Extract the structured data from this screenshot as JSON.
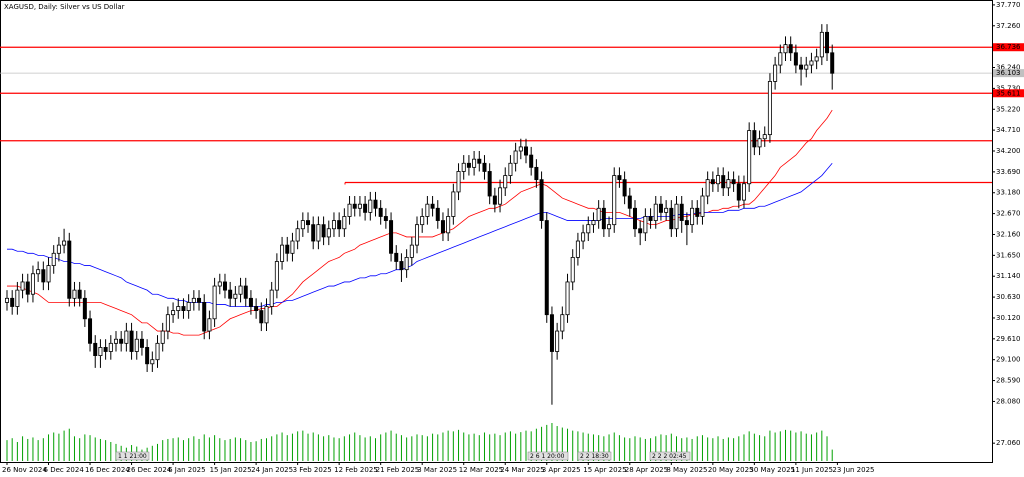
{
  "chart_data": {
    "type": "candlestick",
    "title": "XAGUSD, Daily:  Silver vs US Dollar",
    "date_labels": [
      "26 Nov 2024",
      "6 Dec 2024",
      "16 Dec 2024",
      "26 Dec 2024",
      "6 Jan 2025",
      "15 Jan 2025",
      "24 Jan 2025",
      "3 Feb 2025",
      "12 Feb 2025",
      "21 Feb 2025",
      "3 Mar 2025",
      "12 Mar 2025",
      "24 Mar 2025",
      "3 Apr 2025",
      "15 Apr 2025",
      "28 Apr 2025",
      "8 May 2025",
      "20 May 2025",
      "30 May 2025",
      "11 Jun 2025",
      "23 Jun 2025"
    ],
    "ylim": [
      26.6,
      37.89
    ],
    "yticks": [
      {
        "value": 37.77,
        "label": "37.770"
      },
      {
        "value": 37.26,
        "label": "37.260"
      },
      {
        "value": 36.24,
        "label": "36.240"
      },
      {
        "value": 35.73,
        "label": "35.730"
      },
      {
        "value": 35.22,
        "label": "35.220"
      },
      {
        "value": 34.71,
        "label": "34.710"
      },
      {
        "value": 34.2,
        "label": "34.200"
      },
      {
        "value": 33.69,
        "label": "33.690"
      },
      {
        "value": 33.18,
        "label": "33.180"
      },
      {
        "value": 32.67,
        "label": "32.670"
      },
      {
        "value": 32.16,
        "label": "32.160"
      },
      {
        "value": 31.65,
        "label": "31.650"
      },
      {
        "value": 31.14,
        "label": "31.140"
      },
      {
        "value": 30.63,
        "label": "30.630"
      },
      {
        "value": 30.12,
        "label": "30.120"
      },
      {
        "value": 29.61,
        "label": "29.610"
      },
      {
        "value": 29.1,
        "label": "29.100"
      },
      {
        "value": 28.59,
        "label": "28.590"
      },
      {
        "value": 28.08,
        "label": "28.080"
      },
      {
        "value": 27.06,
        "label": "27.060"
      }
    ],
    "up_color": "#ffffff",
    "down_color": "#000000",
    "open": [
      30.5,
      30.6,
      30.4,
      30.8,
      31.0,
      30.7,
      31.2,
      31.3,
      31.0,
      31.4,
      31.7,
      31.9,
      32.0,
      30.6,
      30.8,
      30.6,
      30.1,
      29.5,
      29.2,
      29.4,
      29.3,
      29.5,
      29.6,
      29.5,
      29.8,
      29.3,
      29.6,
      29.4,
      29.0,
      29.1,
      29.5,
      29.8,
      30.2,
      30.3,
      30.4,
      30.3,
      30.5,
      30.6,
      30.5,
      29.8,
      30.1,
      30.9,
      31.0,
      30.8,
      30.6,
      30.7,
      30.9,
      30.6,
      30.4,
      30.3,
      30.0,
      30.4,
      30.8,
      31.5,
      31.9,
      31.7,
      32.0,
      32.3,
      32.5,
      32.4,
      32.0,
      32.4,
      32.1,
      32.3,
      32.5,
      32.3,
      32.6,
      32.9,
      32.8,
      32.9,
      32.7,
      33.0,
      32.8,
      32.6,
      32.5,
      31.7,
      31.5,
      31.3,
      31.6,
      31.9,
      32.4,
      32.6,
      32.9,
      32.8,
      32.5,
      32.2,
      32.6,
      33.2,
      33.7,
      33.9,
      33.8,
      34.0,
      33.9,
      33.7,
      33.1,
      32.9,
      33.3,
      33.6,
      33.9,
      34.2,
      34.3,
      34.1,
      33.8,
      33.5,
      32.5,
      30.2,
      29.3,
      29.8,
      30.2,
      31.0,
      31.6,
      32.0,
      32.2,
      32.4,
      32.5,
      32.8,
      32.3,
      32.4,
      33.6,
      33.5,
      33.1,
      32.8,
      32.3,
      32.2,
      32.6,
      32.5,
      32.9,
      32.7,
      32.8,
      32.3,
      32.9,
      32.5,
      32.4,
      32.8,
      32.6,
      33.1,
      33.5,
      33.4,
      33.6,
      33.3,
      33.5,
      33.4,
      33.0,
      33.4,
      34.7,
      34.3,
      34.5,
      34.6,
      35.9,
      36.3,
      36.6,
      36.8,
      36.6,
      36.3,
      36.2,
      36.3,
      36.4,
      36.5,
      37.1,
      36.6
    ],
    "high": [
      30.8,
      30.8,
      31.0,
      31.2,
      31.2,
      31.4,
      31.5,
      31.5,
      31.6,
      31.9,
      32.1,
      32.3,
      32.2,
      31.0,
      31.0,
      30.8,
      30.3,
      29.7,
      29.6,
      29.6,
      29.7,
      29.8,
      29.8,
      30.0,
      30.0,
      29.8,
      29.8,
      29.6,
      29.3,
      29.7,
      30.0,
      30.4,
      30.5,
      30.6,
      30.6,
      30.7,
      30.8,
      30.8,
      30.7,
      30.3,
      31.1,
      31.2,
      31.2,
      31.0,
      30.9,
      31.1,
      31.1,
      30.8,
      30.6,
      30.5,
      30.6,
      31.0,
      31.7,
      32.1,
      32.1,
      32.2,
      32.5,
      32.7,
      32.7,
      32.6,
      32.6,
      32.6,
      32.5,
      32.7,
      32.7,
      32.8,
      33.1,
      33.1,
      33.1,
      33.1,
      33.2,
      33.2,
      33.0,
      32.8,
      32.7,
      31.9,
      31.7,
      31.8,
      32.1,
      32.6,
      32.8,
      33.1,
      33.1,
      33.0,
      32.7,
      32.8,
      33.4,
      33.9,
      34.1,
      34.1,
      34.2,
      34.2,
      34.1,
      33.9,
      33.3,
      33.5,
      33.8,
      34.1,
      34.4,
      34.5,
      34.5,
      34.3,
      34.0,
      33.7,
      32.7,
      30.4,
      30.0,
      30.4,
      31.2,
      31.8,
      32.2,
      32.4,
      32.6,
      32.7,
      33.0,
      33.0,
      32.6,
      33.8,
      33.8,
      33.7,
      33.3,
      33.0,
      32.5,
      32.8,
      32.8,
      33.1,
      33.1,
      33.0,
      33.0,
      33.1,
      33.1,
      32.7,
      33.0,
      33.0,
      33.3,
      33.7,
      33.7,
      33.8,
      33.8,
      33.7,
      33.7,
      33.6,
      33.6,
      34.9,
      34.9,
      34.7,
      34.8,
      36.1,
      36.5,
      36.8,
      37.0,
      37.0,
      36.8,
      36.5,
      36.5,
      36.6,
      36.7,
      37.3,
      37.3,
      36.8
    ],
    "low": [
      30.3,
      30.2,
      30.2,
      30.6,
      30.5,
      30.5,
      31.0,
      30.8,
      30.8,
      31.2,
      31.5,
      31.7,
      30.4,
      30.4,
      30.4,
      29.9,
      29.3,
      28.9,
      28.9,
      29.1,
      29.1,
      29.3,
      29.3,
      29.3,
      29.1,
      29.1,
      29.2,
      28.8,
      28.8,
      28.9,
      29.3,
      29.6,
      30.0,
      30.1,
      30.1,
      30.1,
      30.3,
      30.3,
      29.6,
      29.6,
      29.9,
      30.7,
      30.6,
      30.4,
      30.4,
      30.5,
      30.4,
      30.2,
      30.1,
      29.8,
      29.8,
      30.2,
      30.6,
      31.3,
      31.5,
      31.5,
      31.8,
      32.1,
      32.2,
      31.8,
      31.8,
      31.9,
      31.9,
      32.1,
      32.1,
      32.1,
      32.4,
      32.6,
      32.6,
      32.5,
      32.5,
      32.6,
      32.4,
      32.3,
      31.5,
      31.3,
      31.0,
      31.1,
      31.4,
      31.7,
      32.2,
      32.4,
      32.6,
      32.3,
      32.0,
      32.0,
      32.4,
      33.0,
      33.5,
      33.6,
      33.6,
      33.7,
      33.5,
      32.9,
      32.7,
      32.7,
      33.1,
      33.4,
      33.7,
      34.0,
      33.9,
      33.6,
      33.3,
      32.3,
      30.0,
      28.0,
      29.1,
      29.6,
      30.0,
      30.8,
      31.4,
      31.8,
      32.0,
      32.2,
      32.3,
      32.1,
      32.1,
      32.2,
      33.3,
      32.9,
      32.6,
      32.1,
      31.9,
      32.0,
      32.3,
      32.3,
      32.5,
      32.5,
      32.1,
      32.1,
      32.2,
      31.9,
      32.2,
      32.4,
      32.4,
      32.9,
      33.2,
      33.2,
      33.1,
      33.1,
      33.2,
      32.8,
      32.8,
      33.2,
      34.1,
      34.1,
      34.3,
      34.4,
      35.7,
      36.1,
      36.4,
      36.4,
      36.1,
      35.8,
      36.0,
      36.1,
      36.2,
      36.3,
      36.4,
      35.7
    ],
    "close": [
      30.6,
      30.4,
      30.8,
      31.0,
      30.7,
      31.2,
      31.3,
      31.0,
      31.4,
      31.7,
      31.9,
      32.0,
      30.6,
      30.8,
      30.6,
      30.1,
      29.5,
      29.2,
      29.4,
      29.3,
      29.5,
      29.6,
      29.5,
      29.8,
      29.3,
      29.6,
      29.4,
      29.0,
      29.1,
      29.5,
      29.8,
      30.2,
      30.3,
      30.4,
      30.3,
      30.5,
      30.6,
      30.5,
      29.8,
      30.1,
      30.9,
      31.0,
      30.8,
      30.6,
      30.7,
      30.9,
      30.6,
      30.4,
      30.3,
      30.0,
      30.4,
      30.8,
      31.5,
      31.9,
      31.7,
      32.0,
      32.3,
      32.5,
      32.4,
      32.0,
      32.4,
      32.1,
      32.3,
      32.5,
      32.3,
      32.6,
      32.9,
      32.8,
      32.9,
      32.7,
      33.0,
      32.8,
      32.6,
      32.5,
      31.7,
      31.5,
      31.3,
      31.6,
      31.9,
      32.4,
      32.6,
      32.9,
      32.8,
      32.5,
      32.2,
      32.6,
      33.2,
      33.7,
      33.9,
      33.8,
      34.0,
      33.9,
      33.7,
      33.1,
      32.9,
      33.3,
      33.6,
      33.9,
      34.2,
      34.3,
      34.1,
      33.8,
      33.5,
      32.5,
      30.2,
      29.3,
      29.8,
      30.2,
      31.0,
      31.6,
      32.0,
      32.2,
      32.4,
      32.5,
      32.8,
      32.3,
      32.4,
      33.6,
      33.5,
      33.1,
      32.8,
      32.3,
      32.2,
      32.6,
      32.5,
      32.9,
      32.7,
      32.8,
      32.3,
      32.9,
      32.5,
      32.4,
      32.8,
      32.6,
      33.1,
      33.5,
      33.4,
      33.6,
      33.3,
      33.5,
      33.4,
      33.0,
      33.4,
      34.7,
      34.3,
      34.5,
      34.6,
      35.9,
      36.3,
      36.6,
      36.8,
      36.6,
      36.3,
      36.2,
      36.3,
      36.4,
      36.5,
      37.1,
      36.6,
      36.1
    ],
    "series": [
      {
        "color": "#ff0000",
        "values": [
          30.9,
          30.9,
          30.9,
          30.85,
          30.8,
          30.75,
          30.7,
          30.6,
          30.5,
          30.5,
          30.5,
          30.5,
          30.5,
          30.5,
          30.5,
          30.5,
          30.5,
          30.5,
          30.5,
          30.45,
          30.4,
          30.35,
          30.3,
          30.25,
          30.2,
          30.1,
          30.0,
          30.0,
          29.9,
          29.8,
          29.8,
          29.8,
          29.75,
          29.75,
          29.7,
          29.7,
          29.7,
          29.7,
          29.75,
          29.8,
          29.85,
          29.9,
          30.0,
          30.1,
          30.15,
          30.2,
          30.25,
          30.3,
          30.3,
          30.35,
          30.35,
          30.4,
          30.4,
          30.5,
          30.6,
          30.7,
          30.85,
          31.0,
          31.1,
          31.2,
          31.3,
          31.4,
          31.5,
          31.55,
          31.6,
          31.7,
          31.75,
          31.8,
          31.9,
          31.95,
          32.0,
          32.05,
          32.1,
          32.15,
          32.2,
          32.2,
          32.15,
          32.1,
          32.1,
          32.1,
          32.1,
          32.1,
          32.1,
          32.15,
          32.2,
          32.25,
          32.3,
          32.4,
          32.5,
          32.6,
          32.65,
          32.7,
          32.75,
          32.8,
          32.8,
          32.85,
          32.9,
          33.0,
          33.1,
          33.2,
          33.25,
          33.3,
          33.35,
          33.4,
          33.35,
          33.25,
          33.15,
          33.05,
          33.0,
          32.95,
          32.9,
          32.85,
          32.8,
          32.8,
          32.75,
          32.7,
          32.7,
          32.7,
          32.7,
          32.65,
          32.6,
          32.55,
          32.5,
          32.45,
          32.4,
          32.4,
          32.45,
          32.5,
          32.5,
          32.55,
          32.6,
          32.6,
          32.65,
          32.65,
          32.7,
          32.7,
          32.75,
          32.75,
          32.8,
          32.8,
          32.85,
          32.85,
          32.9,
          32.9,
          33.0,
          33.15,
          33.3,
          33.45,
          33.6,
          33.8,
          33.9,
          34.0,
          34.1,
          34.25,
          34.4,
          34.5,
          34.7,
          34.85,
          35.0,
          35.2
        ]
      },
      {
        "color": "#0000ff",
        "values": [
          31.8,
          31.8,
          31.75,
          31.75,
          31.7,
          31.7,
          31.65,
          31.65,
          31.6,
          31.6,
          31.55,
          31.5,
          31.5,
          31.45,
          31.45,
          31.4,
          31.4,
          31.35,
          31.3,
          31.25,
          31.2,
          31.15,
          31.1,
          31.0,
          30.95,
          30.9,
          30.85,
          30.8,
          30.7,
          30.7,
          30.65,
          30.6,
          30.6,
          30.55,
          30.55,
          30.5,
          30.5,
          30.5,
          30.5,
          30.5,
          30.45,
          30.45,
          30.45,
          30.4,
          30.4,
          30.4,
          30.4,
          30.4,
          30.4,
          30.4,
          30.45,
          30.45,
          30.5,
          30.5,
          30.55,
          30.55,
          30.6,
          30.65,
          30.7,
          30.75,
          30.8,
          30.85,
          30.9,
          30.9,
          30.95,
          31.0,
          31.0,
          31.05,
          31.1,
          31.1,
          31.15,
          31.15,
          31.2,
          31.2,
          31.25,
          31.3,
          31.3,
          31.35,
          31.4,
          31.5,
          31.55,
          31.6,
          31.65,
          31.7,
          31.75,
          31.8,
          31.85,
          31.9,
          31.95,
          32.0,
          32.05,
          32.1,
          32.15,
          32.2,
          32.25,
          32.3,
          32.35,
          32.4,
          32.45,
          32.5,
          32.55,
          32.6,
          32.65,
          32.7,
          32.7,
          32.65,
          32.6,
          32.55,
          32.5,
          32.5,
          32.5,
          32.5,
          32.5,
          32.5,
          32.5,
          32.55,
          32.55,
          32.55,
          32.55,
          32.55,
          32.55,
          32.55,
          32.55,
          32.6,
          32.6,
          32.6,
          32.6,
          32.6,
          32.6,
          32.65,
          32.65,
          32.65,
          32.65,
          32.7,
          32.7,
          32.7,
          32.7,
          32.7,
          32.7,
          32.75,
          32.75,
          32.75,
          32.8,
          32.8,
          32.8,
          32.85,
          32.85,
          32.9,
          32.95,
          33.0,
          33.05,
          33.1,
          33.15,
          33.2,
          33.3,
          33.4,
          33.5,
          33.6,
          33.75,
          33.9
        ]
      }
    ],
    "volume_color": "#00a000",
    "volume": [
      55,
      60,
      50,
      65,
      58,
      62,
      55,
      60,
      70,
      75,
      72,
      80,
      85,
      65,
      60,
      70,
      68,
      62,
      58,
      55,
      50,
      45,
      40,
      35,
      42,
      38,
      30,
      35,
      40,
      45,
      55,
      58,
      60,
      62,
      55,
      60,
      65,
      58,
      70,
      62,
      68,
      60,
      55,
      58,
      62,
      60,
      55,
      50,
      52,
      58,
      60,
      65,
      70,
      75,
      68,
      72,
      78,
      80,
      72,
      75,
      70,
      65,
      68,
      62,
      60,
      65,
      70,
      75,
      68,
      62,
      65,
      60,
      70,
      75,
      80,
      72,
      68,
      62,
      65,
      70,
      68,
      65,
      72,
      70,
      75,
      80,
      78,
      82,
      75,
      70,
      72,
      68,
      75,
      70,
      72,
      68,
      75,
      78,
      72,
      76,
      80,
      78,
      85,
      90,
      95,
      100,
      92,
      88,
      85,
      80,
      78,
      75,
      72,
      70,
      68,
      65,
      70,
      75,
      68,
      62,
      60,
      65,
      62,
      58,
      60,
      65,
      70,
      68,
      72,
      65,
      60,
      62,
      58,
      65,
      68,
      62,
      60,
      65,
      58,
      62,
      60,
      65,
      70,
      78,
      72,
      68,
      65,
      80,
      75,
      78,
      82,
      80,
      75,
      78,
      72,
      70,
      75,
      80,
      65,
      30
    ],
    "levels": {
      "color": "#ff0000",
      "values": [
        36.736,
        35.611,
        34.45,
        33.43
      ],
      "value_labels": [
        "36.736",
        "35.611",
        null,
        null
      ]
    },
    "last_price": {
      "value": 36.103,
      "label": "36.103",
      "color": "#c0c0c0"
    },
    "annotations": [
      "1 1 21:00",
      "2 6 1 20:00",
      "2 2 18:30",
      "2 2 2 02:45"
    ]
  }
}
